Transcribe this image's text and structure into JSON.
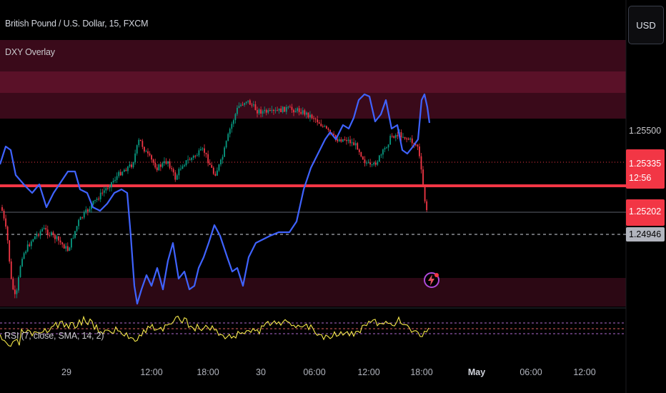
{
  "symbol_title": "British Pound / U.S. Dollar, 15, FXCM",
  "overlay_label": "DXY Overlay",
  "rsi_label": "RSI (7, close, SMA, 14, 2)",
  "currency_button": "USD",
  "price_axis": {
    "level_1": "1.25500",
    "level_current": "1.25335",
    "countdown": "12:56",
    "level_red_line": "1.25202",
    "level_dashed": "1.24946"
  },
  "time_axis": [
    "29",
    "12:00",
    "18:00",
    "30",
    "06:00",
    "12:00",
    "18:00",
    "May",
    "06:00",
    "12:00"
  ],
  "time_axis_bold": [
    "May"
  ],
  "colors": {
    "up_candle": "#089981",
    "down_candle": "#f23645",
    "dxy_line": "#3f63ff",
    "rsi_line": "#f5e84a",
    "zone": "#4a0f22",
    "price_line": "#f23645"
  },
  "icons": [
    "lightning-event-icon"
  ]
}
